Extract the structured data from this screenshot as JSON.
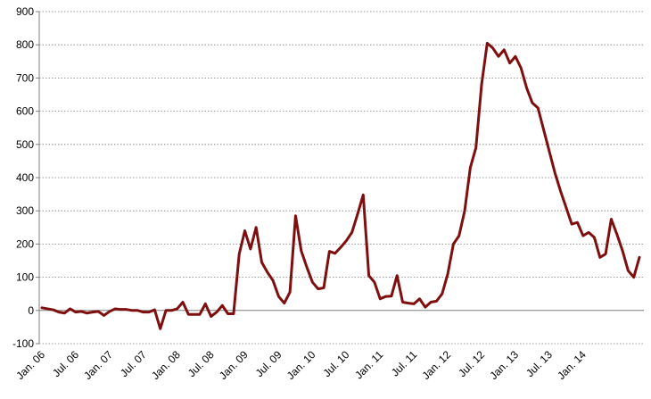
{
  "chart_data": {
    "type": "line",
    "title": "",
    "xlabel": "",
    "ylabel": "",
    "ylim": [
      -100,
      900
    ],
    "yticks": [
      -100,
      0,
      100,
      200,
      300,
      400,
      500,
      600,
      700,
      800,
      900
    ],
    "grid": "horizontal dotted",
    "line_color": "#7f0f0f",
    "x_tick_labels": [
      "Jan. 06",
      "Jul. 06",
      "Jan. 07",
      "Jul. 07",
      "Jan. 08",
      "Jul. 08",
      "Jan. 09",
      "Jul. 09",
      "Jan. 10",
      "Jul. 10",
      "Jan. 11",
      "Jul. 11",
      "Jan. 12",
      "Jul. 12",
      "Jan. 13",
      "Jul. 13",
      "Jan. 14"
    ],
    "x_start": "Jan. 06",
    "x_end": "Jun. 14",
    "series": [
      {
        "values": [
          8,
          5,
          2,
          -5,
          -8,
          5,
          -5,
          -3,
          -8,
          -5,
          -3,
          -15,
          -3,
          5,
          3,
          3,
          0,
          0,
          -5,
          -5,
          2,
          -55,
          0,
          0,
          5,
          25,
          -12,
          -12,
          -12,
          20,
          -18,
          -5,
          15,
          -10,
          -10,
          170,
          240,
          185,
          250,
          145,
          115,
          90,
          42,
          22,
          55,
          285,
          180,
          130,
          85,
          65,
          68,
          178,
          172,
          190,
          210,
          235,
          290,
          348,
          105,
          85,
          35,
          42,
          43,
          105,
          25,
          22,
          20,
          35,
          10,
          25,
          28,
          50,
          110,
          200,
          225,
          300,
          430,
          490,
          680,
          805,
          790,
          765,
          785,
          745,
          765,
          730,
          670,
          625,
          610,
          545,
          480,
          415,
          360,
          310,
          260,
          265,
          225,
          235,
          220,
          160,
          170,
          275,
          230,
          180,
          120,
          100,
          160
        ]
      }
    ]
  }
}
